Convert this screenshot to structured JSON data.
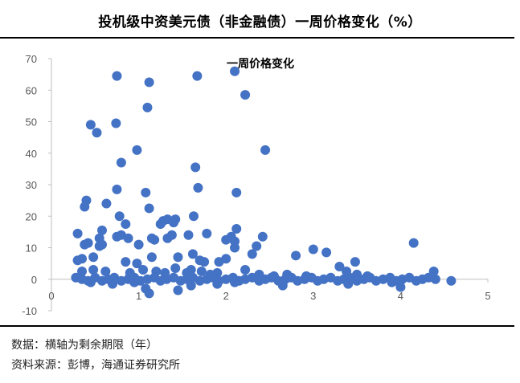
{
  "header": {
    "title": "投机级中资美元债（非金融债）一周价格变化（%）"
  },
  "footer": {
    "note": "数据：横轴为剩余期限（年）",
    "source": "资料来源：彭博，海通证券研究所"
  },
  "colors": {
    "point": "#4472C4",
    "axis": "#bfbfbf",
    "tick_text": "#595959"
  },
  "chart_data": {
    "type": "scatter",
    "title": "一周价格变化",
    "xlabel": "",
    "ylabel": "",
    "xlim": [
      0,
      5
    ],
    "ylim": [
      -10,
      70
    ],
    "xticks": [
      "0",
      "1",
      "2",
      "3",
      "4",
      "5"
    ],
    "yticks": [
      "-10",
      "0",
      "10",
      "20",
      "30",
      "40",
      "50",
      "60",
      "70"
    ],
    "grid": false,
    "legend": "none",
    "series": [
      {
        "points": [
          [
            0.75,
            64.5
          ],
          [
            1.12,
            62.5
          ],
          [
            1.67,
            64.5
          ],
          [
            2.1,
            66.0
          ],
          [
            2.22,
            58.5
          ],
          [
            1.1,
            54.5
          ],
          [
            0.45,
            49.0
          ],
          [
            0.52,
            46.5
          ],
          [
            0.74,
            49.5
          ],
          [
            0.98,
            41.0
          ],
          [
            2.45,
            41.0
          ],
          [
            0.8,
            37.0
          ],
          [
            1.65,
            35.5
          ],
          [
            1.68,
            29.0
          ],
          [
            0.4,
            25.0
          ],
          [
            0.38,
            23.0
          ],
          [
            0.63,
            24.0
          ],
          [
            0.75,
            28.5
          ],
          [
            1.08,
            27.5
          ],
          [
            2.12,
            27.5
          ],
          [
            1.12,
            22.5
          ],
          [
            0.78,
            20.0
          ],
          [
            0.85,
            17.5
          ],
          [
            1.63,
            20.0
          ],
          [
            1.28,
            18.5
          ],
          [
            1.33,
            19.0
          ],
          [
            1.4,
            18.0
          ],
          [
            1.25,
            17.5
          ],
          [
            1.42,
            19.0
          ],
          [
            0.3,
            14.5
          ],
          [
            0.58,
            15.5
          ],
          [
            0.55,
            13.0
          ],
          [
            0.75,
            13.5
          ],
          [
            0.8,
            14.0
          ],
          [
            0.88,
            13.0
          ],
          [
            1.15,
            13.0
          ],
          [
            1.18,
            12.5
          ],
          [
            1.33,
            13.0
          ],
          [
            1.38,
            14.0
          ],
          [
            1.57,
            14.0
          ],
          [
            1.78,
            14.5
          ],
          [
            2.0,
            12.5
          ],
          [
            2.06,
            13.5
          ],
          [
            2.1,
            12.0
          ],
          [
            2.12,
            16.0
          ],
          [
            2.42,
            13.5
          ],
          [
            0.38,
            11.0
          ],
          [
            0.42,
            11.5
          ],
          [
            0.55,
            10.5
          ],
          [
            0.58,
            11.0
          ],
          [
            1.0,
            11.0
          ],
          [
            2.1,
            10.0
          ],
          [
            2.35,
            10.5
          ],
          [
            3.0,
            9.5
          ],
          [
            3.15,
            8.5
          ],
          [
            4.15,
            11.5
          ],
          [
            0.3,
            6.0
          ],
          [
            0.35,
            6.5
          ],
          [
            0.48,
            7.0
          ],
          [
            0.85,
            5.5
          ],
          [
            0.98,
            5.0
          ],
          [
            1.15,
            7.0
          ],
          [
            1.45,
            7.0
          ],
          [
            1.62,
            8.0
          ],
          [
            1.7,
            6.0
          ],
          [
            1.75,
            5.5
          ],
          [
            1.92,
            5.5
          ],
          [
            2.0,
            6.5
          ],
          [
            2.3,
            8.0
          ],
          [
            2.8,
            7.5
          ],
          [
            3.48,
            5.5
          ],
          [
            0.35,
            2.5
          ],
          [
            0.48,
            3.0
          ],
          [
            0.62,
            2.5
          ],
          [
            0.9,
            2.0
          ],
          [
            1.05,
            3.0
          ],
          [
            1.2,
            2.5
          ],
          [
            1.3,
            2.0
          ],
          [
            1.42,
            3.5
          ],
          [
            1.55,
            2.0
          ],
          [
            1.6,
            3.0
          ],
          [
            1.72,
            2.5
          ],
          [
            1.82,
            1.5
          ],
          [
            1.9,
            2.0
          ],
          [
            2.22,
            3.0
          ],
          [
            2.38,
            1.5
          ],
          [
            2.55,
            1.0
          ],
          [
            2.7,
            1.5
          ],
          [
            2.92,
            1.0
          ],
          [
            3.3,
            4.0
          ],
          [
            3.38,
            2.5
          ],
          [
            3.5,
            1.5
          ],
          [
            3.62,
            1.0
          ],
          [
            4.38,
            2.5
          ],
          [
            0.28,
            0.5
          ],
          [
            0.35,
            0.0
          ],
          [
            0.42,
            -0.5
          ],
          [
            0.5,
            0.5
          ],
          [
            0.58,
            -0.5
          ],
          [
            0.65,
            0.0
          ],
          [
            0.72,
            0.5
          ],
          [
            0.8,
            -0.5
          ],
          [
            0.88,
            0.0
          ],
          [
            0.95,
            0.5
          ],
          [
            1.02,
            -0.5
          ],
          [
            1.1,
            0.0
          ],
          [
            1.18,
            0.5
          ],
          [
            1.25,
            -0.5
          ],
          [
            1.32,
            0.0
          ],
          [
            1.4,
            0.5
          ],
          [
            1.48,
            -0.5
          ],
          [
            1.55,
            0.0
          ],
          [
            1.62,
            0.5
          ],
          [
            1.7,
            -0.5
          ],
          [
            1.78,
            0.0
          ],
          [
            1.85,
            0.5
          ],
          [
            1.92,
            -0.5
          ],
          [
            2.0,
            0.0
          ],
          [
            2.08,
            0.5
          ],
          [
            2.15,
            -0.5
          ],
          [
            2.22,
            0.0
          ],
          [
            2.3,
            0.5
          ],
          [
            2.38,
            -0.5
          ],
          [
            2.45,
            0.0
          ],
          [
            2.52,
            0.5
          ],
          [
            2.6,
            -0.5
          ],
          [
            2.68,
            0.0
          ],
          [
            2.75,
            0.5
          ],
          [
            2.82,
            -0.5
          ],
          [
            2.9,
            0.0
          ],
          [
            2.98,
            0.5
          ],
          [
            3.05,
            -0.5
          ],
          [
            3.12,
            0.0
          ],
          [
            3.2,
            0.5
          ],
          [
            3.28,
            -0.5
          ],
          [
            3.35,
            0.0
          ],
          [
            3.42,
            0.5
          ],
          [
            3.5,
            -0.5
          ],
          [
            3.58,
            0.0
          ],
          [
            3.65,
            0.5
          ],
          [
            3.72,
            -0.5
          ],
          [
            3.8,
            0.0
          ],
          [
            3.88,
            0.5
          ],
          [
            3.95,
            -0.5
          ],
          [
            4.02,
            0.0
          ],
          [
            4.1,
            0.5
          ],
          [
            4.18,
            -0.5
          ],
          [
            4.25,
            0.0
          ],
          [
            4.32,
            0.5
          ],
          [
            4.4,
            0.0
          ],
          [
            4.58,
            -0.5
          ],
          [
            0.45,
            -1.0
          ],
          [
            0.7,
            -1.5
          ],
          [
            0.95,
            -1.0
          ],
          [
            1.08,
            -3.0
          ],
          [
            1.12,
            -4.5
          ],
          [
            1.45,
            -3.5
          ],
          [
            1.6,
            -2.0
          ],
          [
            1.9,
            -1.5
          ],
          [
            2.1,
            -1.0
          ],
          [
            2.65,
            -2.0
          ],
          [
            3.4,
            -1.5
          ],
          [
            3.9,
            -1.0
          ],
          [
            4.0,
            -2.5
          ]
        ]
      }
    ]
  }
}
